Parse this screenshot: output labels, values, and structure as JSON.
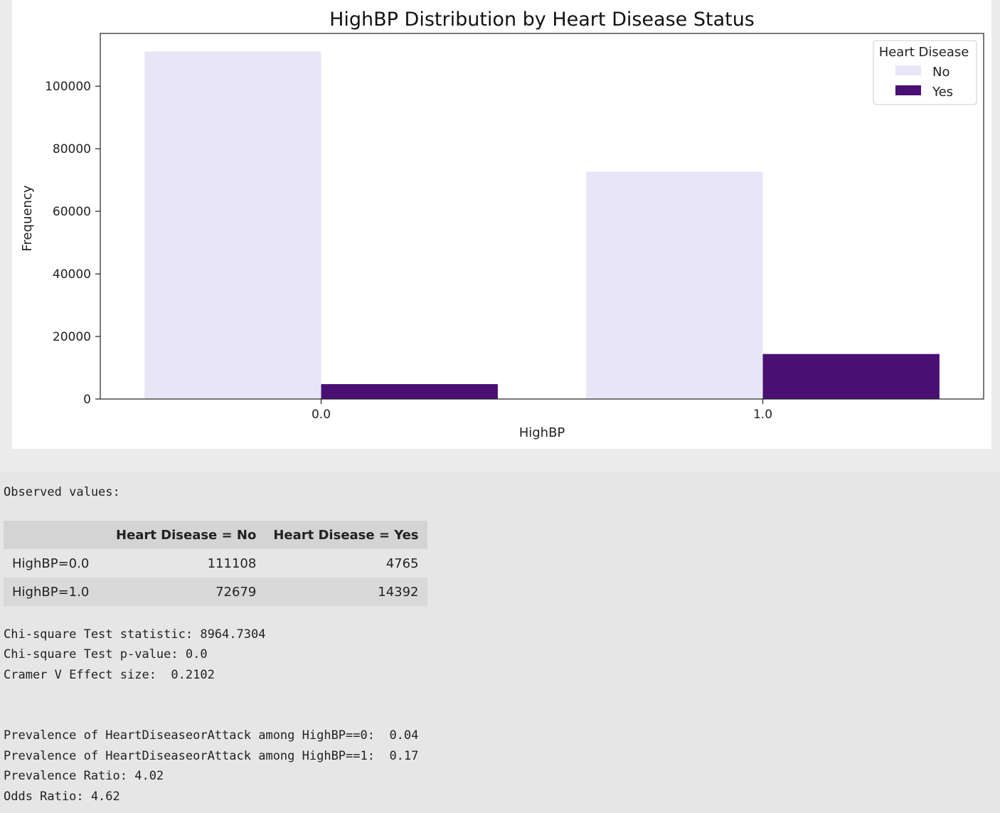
{
  "chart_data": {
    "type": "bar",
    "title": "HighBP Distribution by Heart Disease Status",
    "xlabel": "HighBP",
    "ylabel": "Frequency",
    "categories": [
      "0.0",
      "1.0"
    ],
    "series": [
      {
        "name": "No",
        "values": [
          111108,
          72679
        ],
        "color": "#e8e6f6"
      },
      {
        "name": "Yes",
        "values": [
          4765,
          14392
        ],
        "color": "#4a0f72"
      }
    ],
    "ylim": [
      0,
      116872
    ],
    "yticks": [
      0,
      20000,
      40000,
      60000,
      80000,
      100000
    ],
    "legend": {
      "title": "Heart Disease",
      "placement": "top-right"
    },
    "grid": false
  },
  "output": {
    "observed_label": "Observed values:",
    "table": {
      "headers": [
        "",
        "Heart Disease = No",
        "Heart Disease = Yes"
      ],
      "rows": [
        {
          "label": "HighBP=0.0",
          "no": "111108",
          "yes": "4765"
        },
        {
          "label": "HighBP=1.0",
          "no": "72679",
          "yes": "14392"
        }
      ]
    },
    "chi_stat": "Chi-square Test statistic: 8964.7304",
    "chi_p": "Chi-square Test p-value: 0.0",
    "cramer": "Cramer V Effect size:  0.2102",
    "prev0": "Prevalence of HeartDiseaseorAttack among HighBP==0:  0.04",
    "prev1": "Prevalence of HeartDiseaseorAttack among HighBP==1:  0.17",
    "prev_ratio": "Prevalence Ratio: 4.02",
    "odds_ratio": "Odds Ratio: 4.62"
  }
}
